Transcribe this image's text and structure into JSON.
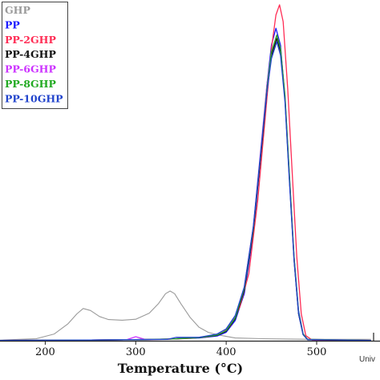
{
  "chart_data": {
    "type": "line",
    "title": "",
    "xlabel": "Temperature (°C)",
    "ylabel": "",
    "xlim": [
      150,
      570
    ],
    "ylim": [
      0,
      1.0
    ],
    "x_ticks": [
      200,
      300,
      400,
      500
    ],
    "x_tick_labels": [
      "200",
      "300",
      "400",
      "500"
    ],
    "grid": false,
    "legend_position": "top-left",
    "corner_text": "Univ",
    "series": [
      {
        "name": "GHP",
        "color": "#9a9a9a",
        "x": [
          150,
          190,
          210,
          225,
          235,
          242,
          250,
          260,
          270,
          285,
          300,
          315,
          325,
          333,
          338,
          343,
          350,
          360,
          370,
          380,
          390,
          400,
          410,
          440,
          470,
          500,
          530,
          560
        ],
        "y": [
          0.002,
          0.006,
          0.02,
          0.05,
          0.08,
          0.096,
          0.09,
          0.072,
          0.063,
          0.061,
          0.064,
          0.082,
          0.11,
          0.14,
          0.148,
          0.14,
          0.11,
          0.07,
          0.04,
          0.025,
          0.018,
          0.013,
          0.008,
          0.006,
          0.005,
          0.004,
          0.004,
          0.004
        ]
      },
      {
        "name": "PP",
        "color": "#1a1aff",
        "x": [
          150,
          250,
          300,
          320,
          340,
          370,
          390,
          400,
          410,
          420,
          430,
          440,
          445,
          450,
          455,
          460,
          465,
          470,
          475,
          480,
          485,
          490,
          500,
          560
        ],
        "y": [
          0.001,
          0.002,
          0.003,
          0.004,
          0.005,
          0.008,
          0.014,
          0.025,
          0.06,
          0.14,
          0.32,
          0.6,
          0.76,
          0.88,
          0.93,
          0.88,
          0.72,
          0.48,
          0.25,
          0.09,
          0.02,
          0.004,
          0.001,
          0.001
        ]
      },
      {
        "name": "PP-2GHP",
        "color": "#ff2d55",
        "x": [
          150,
          250,
          300,
          330,
          360,
          380,
          395,
          405,
          415,
          425,
          435,
          445,
          450,
          455,
          459,
          463,
          468,
          473,
          478,
          483,
          488,
          495,
          560
        ],
        "y": [
          0.001,
          0.002,
          0.003,
          0.004,
          0.007,
          0.012,
          0.022,
          0.045,
          0.1,
          0.2,
          0.42,
          0.72,
          0.87,
          0.97,
          1.0,
          0.95,
          0.75,
          0.5,
          0.25,
          0.08,
          0.015,
          0.002,
          0.001
        ]
      },
      {
        "name": "PP-4GHP",
        "color": "#111111",
        "x": [
          150,
          250,
          300,
          340,
          370,
          390,
          400,
          410,
          420,
          430,
          440,
          445,
          450,
          456,
          460,
          465,
          470,
          475,
          480,
          485,
          490,
          560
        ],
        "y": [
          0.001,
          0.002,
          0.003,
          0.005,
          0.009,
          0.016,
          0.028,
          0.065,
          0.15,
          0.33,
          0.6,
          0.74,
          0.85,
          0.9,
          0.86,
          0.72,
          0.48,
          0.24,
          0.08,
          0.018,
          0.003,
          0.001
        ]
      },
      {
        "name": "PP-6GHP",
        "color": "#cc33ff",
        "x": [
          150,
          250,
          290,
          300,
          310,
          340,
          370,
          390,
          400,
          410,
          420,
          430,
          440,
          445,
          450,
          456,
          460,
          465,
          470,
          475,
          480,
          485,
          490,
          560
        ],
        "y": [
          0.001,
          0.002,
          0.003,
          0.012,
          0.004,
          0.005,
          0.01,
          0.018,
          0.03,
          0.07,
          0.16,
          0.34,
          0.62,
          0.76,
          0.86,
          0.91,
          0.87,
          0.73,
          0.49,
          0.25,
          0.085,
          0.02,
          0.004,
          0.001
        ]
      },
      {
        "name": "PP-8GHP",
        "color": "#22aa22",
        "x": [
          150,
          250,
          300,
          340,
          370,
          390,
          400,
          410,
          420,
          430,
          440,
          445,
          450,
          456,
          460,
          465,
          470,
          475,
          480,
          485,
          490,
          560
        ],
        "y": [
          0.001,
          0.002,
          0.003,
          0.005,
          0.009,
          0.017,
          0.03,
          0.068,
          0.155,
          0.335,
          0.61,
          0.75,
          0.86,
          0.91,
          0.87,
          0.73,
          0.49,
          0.25,
          0.085,
          0.02,
          0.004,
          0.001
        ]
      },
      {
        "name": "PP-10GHP",
        "color": "#2244cc",
        "x": [
          150,
          250,
          300,
          335,
          345,
          370,
          390,
          400,
          410,
          420,
          430,
          440,
          445,
          450,
          456,
          460,
          465,
          470,
          475,
          480,
          485,
          490,
          560
        ],
        "y": [
          0.001,
          0.002,
          0.003,
          0.004,
          0.01,
          0.01,
          0.02,
          0.035,
          0.075,
          0.16,
          0.34,
          0.61,
          0.74,
          0.84,
          0.89,
          0.85,
          0.71,
          0.47,
          0.24,
          0.08,
          0.018,
          0.003,
          0.001
        ]
      }
    ]
  }
}
